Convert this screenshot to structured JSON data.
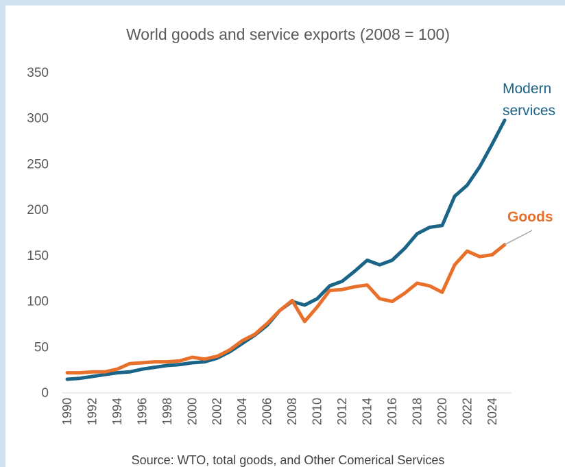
{
  "chart_data": {
    "type": "line",
    "title": "World goods and service exports (2008 = 100)",
    "source": "Source: WTO, total goods, and Other Comerical Services",
    "ylim": [
      0,
      350
    ],
    "yticks": [
      0,
      50,
      100,
      150,
      200,
      250,
      300,
      350
    ],
    "xticks": [
      "1990",
      "1992",
      "1994",
      "1996",
      "1998",
      "2000",
      "2002",
      "2004",
      "2006",
      "2008",
      "2010",
      "2012",
      "2014",
      "2016",
      "2018",
      "2020",
      "2022",
      "2024"
    ],
    "x": [
      1990,
      1991,
      1992,
      1993,
      1994,
      1995,
      1996,
      1997,
      1998,
      1999,
      2000,
      2001,
      2002,
      2003,
      2004,
      2005,
      2006,
      2007,
      2008,
      2009,
      2010,
      2011,
      2012,
      2013,
      2014,
      2015,
      2016,
      2017,
      2018,
      2019,
      2020,
      2021,
      2022,
      2023,
      2024,
      2025
    ],
    "grid": false,
    "series": [
      {
        "label_lines": [
          "Modern",
          "services"
        ],
        "color": "#1a6488",
        "values": [
          15,
          16,
          18,
          20,
          22,
          23,
          26,
          28,
          30,
          31,
          33,
          34,
          38,
          45,
          54,
          63,
          74,
          90,
          100,
          96,
          103,
          117,
          122,
          133,
          145,
          140,
          145,
          158,
          174,
          181,
          183,
          215,
          227,
          247,
          272,
          298
        ]
      },
      {
        "label_lines": [
          "Goods"
        ],
        "color": "#e8702a",
        "values": [
          22,
          22,
          23,
          23,
          26,
          32,
          33,
          34,
          34,
          35,
          39,
          37,
          40,
          47,
          57,
          64,
          76,
          90,
          101,
          78,
          94,
          112,
          113,
          116,
          118,
          103,
          100,
          109,
          120,
          117,
          110,
          140,
          155,
          149,
          151,
          162
        ]
      }
    ]
  }
}
